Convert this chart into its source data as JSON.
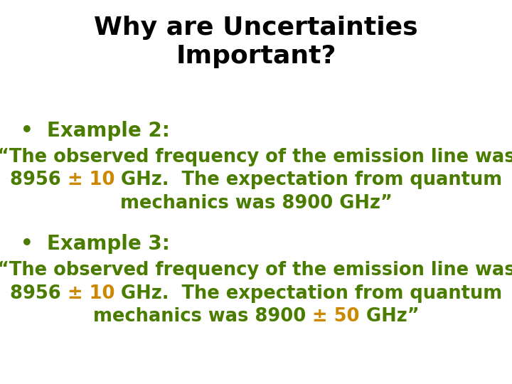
{
  "title_line1": "Why are Uncertainties",
  "title_line2": "Important?",
  "title_color": "#000000",
  "title_fontsize": 26,
  "bullet_color": "#4a7c00",
  "bullet_fontsize": 20,
  "body_fontsize": 18.5,
  "orange_color": "#cc8800",
  "green_color": "#4a7c00",
  "background_color": "#ffffff",
  "example2_bullet": "•  Example 2:",
  "example3_bullet": "•  Example 3:",
  "segments_ex2_line1": [
    {
      "text": "“The observed frequency of the emission line was",
      "color": "#4a7c00"
    }
  ],
  "segments_ex2_line2": [
    {
      "text": "8956 ",
      "color": "#4a7c00"
    },
    {
      "text": "± 10",
      "color": "#cc8800"
    },
    {
      "text": " GHz.  The expectation from quantum",
      "color": "#4a7c00"
    }
  ],
  "segments_ex2_line3": [
    {
      "text": "mechanics was 8900 GHz”",
      "color": "#4a7c00"
    }
  ],
  "segments_ex3_line1": [
    {
      "text": "“The observed frequency of the emission line was",
      "color": "#4a7c00"
    }
  ],
  "segments_ex3_line2": [
    {
      "text": "8956 ",
      "color": "#4a7c00"
    },
    {
      "text": "± 10",
      "color": "#cc8800"
    },
    {
      "text": " GHz.  The expectation from quantum",
      "color": "#4a7c00"
    }
  ],
  "segments_ex3_line3": [
    {
      "text": "mechanics was 8900 ",
      "color": "#4a7c00"
    },
    {
      "text": "± 50",
      "color": "#cc8800"
    },
    {
      "text": " GHz”",
      "color": "#4a7c00"
    }
  ]
}
